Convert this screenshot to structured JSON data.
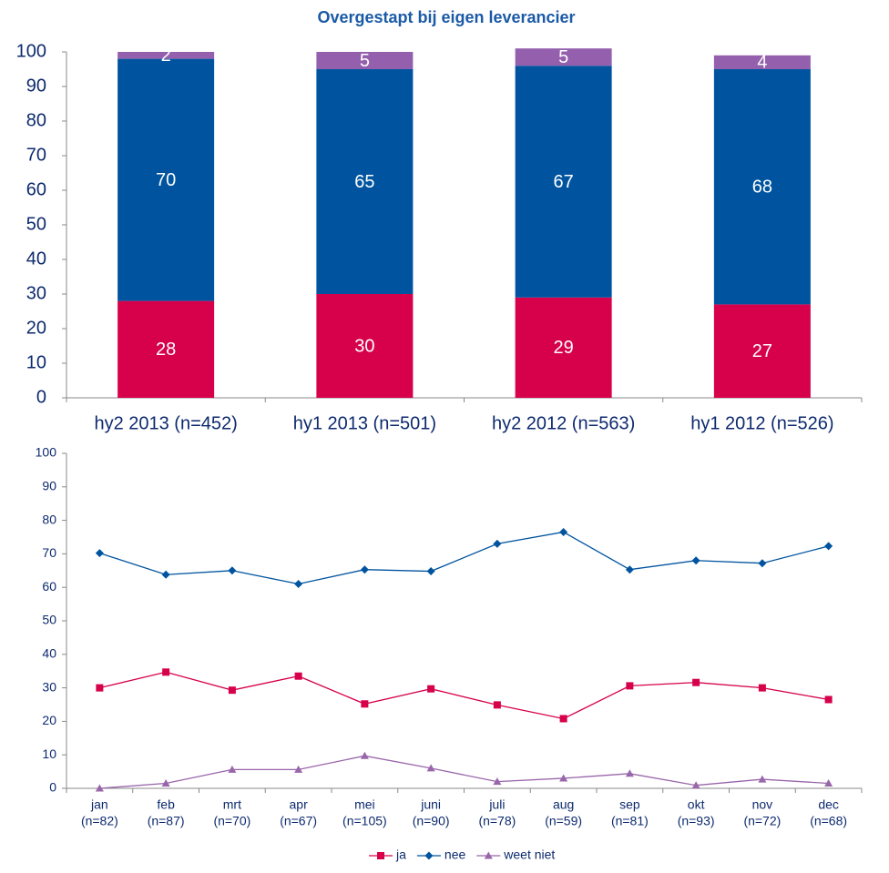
{
  "chart_data": [
    {
      "type": "stacked_bar",
      "title": "Overgestapt bij eigen leverancier",
      "categories": [
        "hy2 2013 (n=452)",
        "hy1 2013 (n=501)",
        "hy2 2012 (n=563)",
        "hy1 2012 (n=526)"
      ],
      "series": [
        {
          "color": "#d6004b",
          "values": [
            28,
            30,
            29,
            27
          ]
        },
        {
          "color": "#00549f",
          "values": [
            70,
            65,
            67,
            68
          ]
        },
        {
          "color": "#9460ad",
          "values": [
            2,
            5,
            5,
            4
          ]
        }
      ],
      "ylim": [
        0,
        100
      ],
      "yticks": [
        0,
        10,
        20,
        30,
        40,
        50,
        60,
        70,
        80,
        90,
        100
      ],
      "grid": false
    },
    {
      "type": "line",
      "categories": [
        [
          "jan",
          "(n=82)"
        ],
        [
          "feb",
          "(n=87)"
        ],
        [
          "mrt",
          "(n=70)"
        ],
        [
          "apr",
          "(n=67)"
        ],
        [
          "mei",
          "(n=105)"
        ],
        [
          "juni",
          "(n=90)"
        ],
        [
          "juli",
          "(n=78)"
        ],
        [
          "aug",
          "(n=59)"
        ],
        [
          "sep",
          "(n=81)"
        ],
        [
          "okt",
          "(n=93)"
        ],
        [
          "nov",
          "(n=72)"
        ],
        [
          "dec",
          "(n=68)"
        ]
      ],
      "series": [
        {
          "name": "ja",
          "color": "#d6004b",
          "marker": "square",
          "values": [
            30,
            34.7,
            29.3,
            33.5,
            25.2,
            29.7,
            24.9,
            20.8,
            30.6,
            31.6,
            30,
            26.5
          ]
        },
        {
          "name": "nee",
          "color": "#00549f",
          "marker": "diamond",
          "values": [
            70.2,
            63.8,
            65,
            61,
            65.3,
            64.8,
            73,
            76.5,
            65.3,
            68,
            67.2,
            72.3
          ]
        },
        {
          "name": "weet niet",
          "color": "#9966aa",
          "marker": "triangle",
          "values": [
            0,
            1.5,
            5.6,
            5.6,
            9.7,
            6,
            2,
            3,
            4.4,
            0.9,
            2.7,
            1.5
          ]
        }
      ],
      "ylim": [
        0,
        100
      ],
      "yticks": [
        0,
        10,
        20,
        30,
        40,
        50,
        60,
        70,
        80,
        90,
        100
      ],
      "grid": false,
      "legend": "bottom"
    }
  ]
}
